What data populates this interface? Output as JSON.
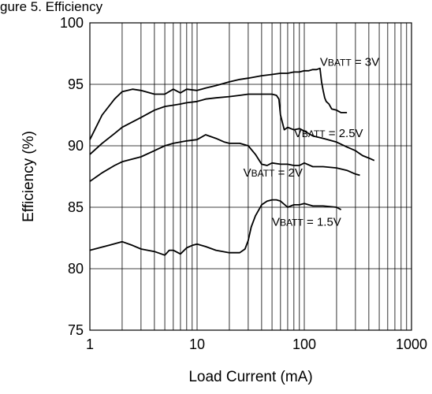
{
  "caption": "gure 5. Efficiency",
  "chart_data": {
    "type": "line",
    "title": "",
    "xlabel": "Load Current (mA)",
    "ylabel": "Efficiency (%)",
    "x_scale": "log",
    "xlim": [
      1,
      1000
    ],
    "ylim": [
      75,
      100
    ],
    "x_ticks": [
      1,
      10,
      100,
      1000
    ],
    "x_tick_labels": [
      "1",
      "10",
      "100",
      "1000"
    ],
    "y_ticks": [
      75,
      80,
      85,
      90,
      95,
      100
    ],
    "y_tick_labels": [
      "75",
      "80",
      "85",
      "90",
      "95",
      "100"
    ],
    "grid": true,
    "legend": "none",
    "line_color": "#000000",
    "series": [
      {
        "name": "VBATT = 3V",
        "label_main": "V",
        "label_sub": "BATT",
        "label_rest": " = 3V",
        "label_at": [
          140,
          96.5
        ],
        "x": [
          1,
          1.3,
          1.7,
          2,
          2.5,
          3,
          4,
          5,
          6,
          7,
          8,
          10,
          12,
          15,
          20,
          25,
          30,
          40,
          50,
          60,
          70,
          80,
          90,
          100,
          110,
          120,
          130,
          140,
          145,
          150,
          155,
          160,
          170,
          180,
          200,
          220,
          250
        ],
        "y": [
          90.5,
          92.5,
          93.8,
          94.4,
          94.6,
          94.5,
          94.2,
          94.2,
          94.6,
          94.3,
          94.6,
          94.5,
          94.7,
          94.9,
          95.2,
          95.4,
          95.5,
          95.7,
          95.8,
          95.9,
          95.9,
          96.0,
          96.0,
          96.1,
          96.1,
          96.2,
          96.2,
          96.3,
          95.2,
          94.5,
          93.9,
          93.6,
          93.4,
          93.0,
          92.9,
          92.7,
          92.7
        ]
      },
      {
        "name": "VBATT = 2.5V",
        "label_main": "V",
        "label_sub": "BATT",
        "label_rest": " = 2.5V",
        "label_at": [
          80,
          90.7
        ],
        "x": [
          1,
          1.3,
          1.7,
          2,
          3,
          4,
          5,
          6,
          7,
          8,
          10,
          12,
          15,
          20,
          25,
          30,
          40,
          50,
          55,
          58,
          60,
          65,
          70,
          80,
          90,
          100,
          120,
          150,
          200,
          250,
          300,
          350,
          400,
          450
        ],
        "y": [
          89.3,
          90.2,
          91.0,
          91.5,
          92.3,
          92.9,
          93.2,
          93.3,
          93.4,
          93.5,
          93.6,
          93.8,
          93.9,
          94.0,
          94.1,
          94.2,
          94.2,
          94.2,
          94.1,
          93.8,
          92.5,
          91.3,
          91.5,
          91.3,
          91.4,
          91.2,
          90.8,
          90.6,
          90.3,
          89.9,
          89.6,
          89.2,
          89.0,
          88.8
        ]
      },
      {
        "name": "VBATT = 2V",
        "label_main": "V",
        "label_sub": "BATT",
        "label_rest": " = 2V",
        "label_at": [
          27,
          87.5
        ],
        "x": [
          1,
          1.3,
          1.7,
          2,
          3,
          4,
          5,
          6,
          8,
          10,
          12,
          15,
          18,
          20,
          25,
          30,
          35,
          40,
          45,
          50,
          60,
          70,
          80,
          90,
          100,
          120,
          150,
          200,
          250,
          300,
          330
        ],
        "y": [
          87.1,
          87.8,
          88.4,
          88.7,
          89.1,
          89.6,
          90.0,
          90.2,
          90.4,
          90.5,
          90.9,
          90.6,
          90.3,
          90.2,
          90.2,
          90.0,
          89.3,
          88.5,
          88.4,
          88.6,
          88.5,
          88.5,
          88.4,
          88.4,
          88.6,
          88.3,
          88.3,
          88.2,
          88.0,
          87.7,
          87.6
        ]
      },
      {
        "name": "VBATT = 1.5V",
        "label_main": "V",
        "label_sub": "BATT",
        "label_rest": " = 1.5V",
        "label_at": [
          50,
          83.5
        ],
        "x": [
          1,
          1.5,
          2,
          2.5,
          3,
          4,
          5,
          5.5,
          6,
          7,
          8,
          9,
          10,
          12,
          15,
          20,
          25,
          28,
          30,
          32,
          35,
          40,
          45,
          50,
          55,
          60,
          70,
          80,
          90,
          100,
          120,
          150,
          200,
          220
        ],
        "y": [
          81.5,
          81.9,
          82.2,
          81.9,
          81.6,
          81.4,
          81.1,
          81.5,
          81.5,
          81.2,
          81.7,
          81.9,
          82.0,
          81.8,
          81.5,
          81.3,
          81.3,
          81.6,
          82.3,
          83.4,
          84.3,
          85.2,
          85.5,
          85.6,
          85.6,
          85.5,
          85.0,
          85.2,
          85.2,
          85.3,
          85.1,
          85.1,
          85.0,
          84.8
        ]
      }
    ]
  }
}
